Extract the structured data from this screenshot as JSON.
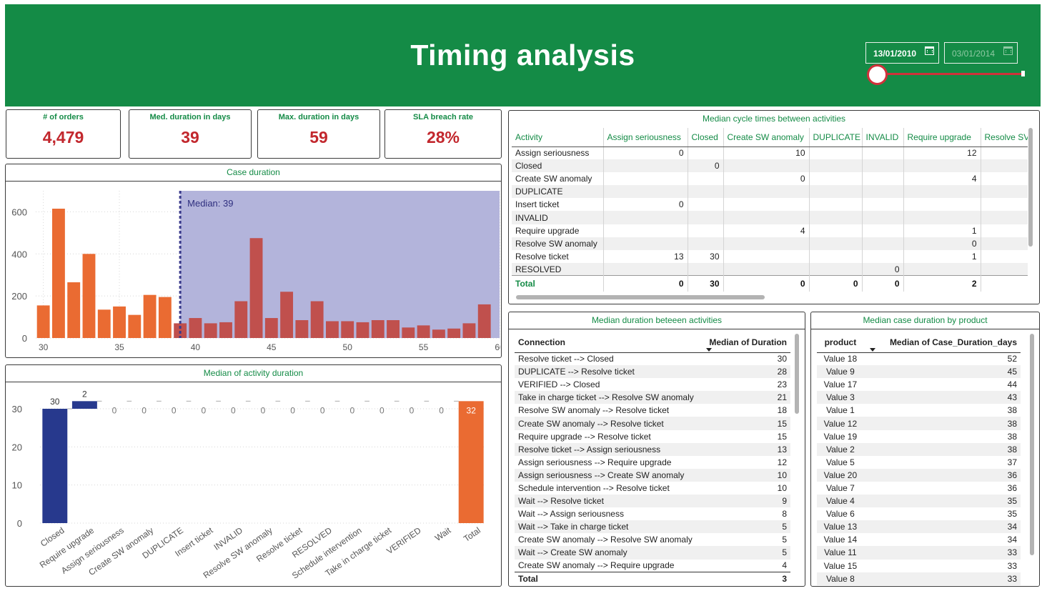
{
  "header": {
    "title": "Timing analysis",
    "date_start": "13/01/2010",
    "date_end": "03/01/2014",
    "colors": {
      "brand": "#148b46",
      "slider": "#d0313a"
    }
  },
  "kpis": [
    {
      "label": "# of orders",
      "value": "4,479"
    },
    {
      "label": "Med. duration in days",
      "value": "39"
    },
    {
      "label": "Max. duration in days",
      "value": "59"
    },
    {
      "label": "SLA breach rate",
      "value": "28%"
    }
  ],
  "case_duration": {
    "title": "Case duration",
    "median_label": "Median: 39"
  },
  "activity_duration": {
    "title": "Median of activity duration"
  },
  "chart_data": [
    {
      "type": "bar",
      "title": "Case duration",
      "x": [
        30,
        31,
        32,
        33,
        34,
        35,
        36,
        37,
        38,
        39,
        40,
        41,
        42,
        43,
        44,
        45,
        46,
        47,
        48,
        49,
        50,
        51,
        52,
        53,
        54,
        55,
        56,
        57,
        58,
        59
      ],
      "values": [
        155,
        615,
        265,
        400,
        135,
        150,
        110,
        205,
        195,
        70,
        95,
        70,
        75,
        175,
        475,
        95,
        220,
        85,
        175,
        80,
        80,
        75,
        85,
        85,
        50,
        60,
        40,
        45,
        70,
        160
      ],
      "xticks": [
        30,
        35,
        40,
        45,
        50,
        55,
        60
      ],
      "yticks": [
        0,
        200,
        400,
        600
      ],
      "xlim": [
        29.5,
        60
      ],
      "ylim": [
        0,
        700
      ],
      "median": 39,
      "median_label": "Median: 39",
      "colors": {
        "below": "#ea6b32",
        "above": "#c0504d",
        "band": "#b3b4db",
        "median": "#3a3a8c"
      }
    },
    {
      "type": "bar",
      "subtype": "waterfall",
      "title": "Median of activity duration",
      "categories": [
        "Closed",
        "Require upgrade",
        "Assign seriousness",
        "Create SW anomaly",
        "DUPLICATE",
        "Insert ticket",
        "INVALID",
        "Resolve SW anomaly",
        "Resolve ticket",
        "RESOLVED",
        "Schedule intervention",
        "Take in charge ticket",
        "VERIFIED",
        "Wait",
        "Total"
      ],
      "values": [
        30,
        2,
        0,
        0,
        0,
        0,
        0,
        0,
        0,
        0,
        0,
        0,
        0,
        0,
        32
      ],
      "yticks": [
        0,
        10,
        20,
        30
      ],
      "ylim": [
        0,
        33
      ],
      "colors": {
        "increase": "#27398d",
        "total": "#ea6b32"
      }
    }
  ],
  "matrix": {
    "title": "Median cycle times between activities",
    "columns": [
      "Activity",
      "Assign seriousness",
      "Closed",
      "Create SW anomaly",
      "DUPLICATE",
      "INVALID",
      "Require upgrade",
      "Resolve SV"
    ],
    "rows": [
      [
        "Assign seriousness",
        "0",
        "",
        "10",
        "",
        "",
        "12",
        ""
      ],
      [
        "Closed",
        "",
        "0",
        "",
        "",
        "",
        "",
        ""
      ],
      [
        "Create SW anomaly",
        "",
        "",
        "0",
        "",
        "",
        "4",
        ""
      ],
      [
        "DUPLICATE",
        "",
        "",
        "",
        "",
        "",
        "",
        ""
      ],
      [
        "Insert ticket",
        "0",
        "",
        "",
        "",
        "",
        "",
        ""
      ],
      [
        "INVALID",
        "",
        "",
        "",
        "",
        "",
        "",
        ""
      ],
      [
        "Require upgrade",
        "",
        "",
        "4",
        "",
        "",
        "1",
        ""
      ],
      [
        "Resolve SW anomaly",
        "",
        "",
        "",
        "",
        "",
        "0",
        ""
      ],
      [
        "Resolve ticket",
        "13",
        "30",
        "",
        "",
        "",
        "1",
        ""
      ],
      [
        "RESOLVED",
        "",
        "",
        "",
        "",
        "0",
        "",
        ""
      ]
    ],
    "total": [
      "Total",
      "0",
      "30",
      "0",
      "0",
      "0",
      "2",
      ""
    ]
  },
  "connections": {
    "title": "Median duration beteeen activities",
    "headers": [
      "Connection",
      "Median of Duration"
    ],
    "rows": [
      [
        "Resolve ticket --> Closed",
        "30"
      ],
      [
        "DUPLICATE --> Resolve ticket",
        "28"
      ],
      [
        "VERIFIED --> Closed",
        "23"
      ],
      [
        "Take in charge ticket --> Resolve SW anomaly",
        "21"
      ],
      [
        "Resolve SW anomaly --> Resolve ticket",
        "18"
      ],
      [
        "Create SW anomaly --> Resolve ticket",
        "15"
      ],
      [
        "Require upgrade --> Resolve ticket",
        "15"
      ],
      [
        "Resolve ticket --> Assign seriousness",
        "13"
      ],
      [
        "Assign seriousness --> Require upgrade",
        "12"
      ],
      [
        "Assign seriousness --> Create SW anomaly",
        "10"
      ],
      [
        "Schedule intervention --> Resolve ticket",
        "10"
      ],
      [
        "Wait --> Resolve ticket",
        "9"
      ],
      [
        "Wait --> Assign seriousness",
        "8"
      ],
      [
        "Wait --> Take in charge ticket",
        "5"
      ],
      [
        "Create SW anomaly --> Resolve SW anomaly",
        "5"
      ],
      [
        "Wait --> Create SW anomaly",
        "5"
      ],
      [
        "Create SW anomaly --> Require upgrade",
        "4"
      ]
    ],
    "total": [
      "Total",
      "3"
    ]
  },
  "products": {
    "title": "Median case duration by product",
    "headers": [
      "product",
      "Median of Case_Duration_days"
    ],
    "rows": [
      [
        "Value 18",
        "52"
      ],
      [
        "Value 9",
        "45"
      ],
      [
        "Value 17",
        "44"
      ],
      [
        "Value 3",
        "43"
      ],
      [
        "Value 1",
        "38"
      ],
      [
        "Value 12",
        "38"
      ],
      [
        "Value 19",
        "38"
      ],
      [
        "Value 2",
        "38"
      ],
      [
        "Value 5",
        "37"
      ],
      [
        "Value 20",
        "36"
      ],
      [
        "Value 7",
        "36"
      ],
      [
        "Value 4",
        "35"
      ],
      [
        "Value 6",
        "35"
      ],
      [
        "Value 13",
        "34"
      ],
      [
        "Value 14",
        "34"
      ],
      [
        "Value 11",
        "33"
      ],
      [
        "Value 15",
        "33"
      ],
      [
        "Value 8",
        "33"
      ]
    ]
  }
}
